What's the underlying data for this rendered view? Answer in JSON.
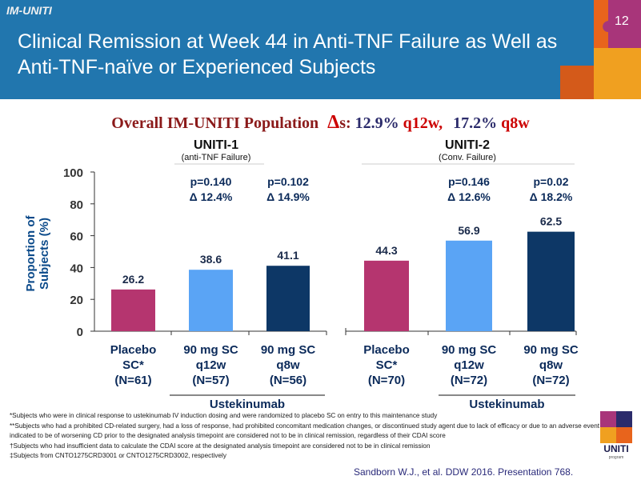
{
  "header": {
    "brand": "IM-UNITI",
    "title": "Clinical Remission at Week 44 in Anti-TNF Failure as Well as Anti-TNF-naïve or Experienced Subjects",
    "slide_number": "12"
  },
  "subtitle": {
    "lead": "Overall IM-UNITI Population",
    "delta_symbol": "Δ",
    "suffix": "s: ",
    "q12w_pct": "12.9%",
    "q12w_label": "q12w,",
    "q8w_pct": "17.2%",
    "q8w_label": "q8w"
  },
  "chart_data": {
    "type": "bar",
    "ylabel": "Proportion of Subjects (%)",
    "ylim": [
      0,
      100
    ],
    "yticks": [
      "0",
      "20",
      "40",
      "60",
      "80",
      "100"
    ],
    "grid": false,
    "groups": [
      {
        "title": "UNITI-1",
        "subtitle": "(anti-TNF Failure)",
        "brace_label": "Ustekinumab",
        "bars": [
          {
            "label": [
              "Placebo",
              "SC*",
              "(N=61)"
            ],
            "value": 26.2,
            "value_label": "26.2",
            "color": "#b5356f",
            "p": "",
            "delta": ""
          },
          {
            "label": [
              "90 mg SC",
              "q12w",
              "(N=57)"
            ],
            "value": 38.6,
            "value_label": "38.6",
            "color": "#5aa4f5",
            "p": "p=0.140",
            "delta": "Δ 12.4%"
          },
          {
            "label": [
              "90 mg SC",
              "q8w",
              "(N=56)"
            ],
            "value": 41.1,
            "value_label": "41.1",
            "color": "#0d3766",
            "p": "p=0.102",
            "delta": "Δ 14.9%"
          }
        ]
      },
      {
        "title": "UNITI-2",
        "subtitle": "(Conv. Failure)",
        "brace_label": "Ustekinumab",
        "bars": [
          {
            "label": [
              "Placebo",
              "SC*",
              "(N=70)"
            ],
            "value": 44.3,
            "value_label": "44.3",
            "color": "#b5356f",
            "p": "",
            "delta": ""
          },
          {
            "label": [
              "90 mg SC",
              "q12w",
              "(N=72)"
            ],
            "value": 56.9,
            "value_label": "56.9",
            "color": "#5aa4f5",
            "p": "p=0.146",
            "delta": "Δ 12.6%"
          },
          {
            "label": [
              "90 mg SC",
              "q8w",
              "(N=72)"
            ],
            "value": 62.5,
            "value_label": "62.5",
            "color": "#0d3766",
            "p": "p=0.02",
            "delta": "Δ 18.2%"
          }
        ]
      }
    ]
  },
  "footnotes": [
    "*Subjects who were in clinical response to ustekinumab IV induction dosing and were randomized to placebo SC on entry to this maintenance study",
    "**Subjects who had a prohibited CD-related surgery, had a loss of response, had prohibited concomitant medication changes, or discontinued study agent due to lack of efficacy or due to an adverse event indicated to be of worsening CD prior to the designated analysis timepoint are considered not to be in clinical remission, regardless of their CDAI score",
    "†Subjects who had insufficient data to calculate the CDAI score at the designated analysis timepoint are considered not to be in clinical remission",
    "‡Subjects from CNTO1275CRD3001 or CNTO1275CRD3002, respectively"
  ],
  "citation": "Sandborn W.J., et al. DDW 2016. Presentation 768.",
  "logo": {
    "text": "UNITI",
    "subtext": "program"
  },
  "colors": {
    "header_bg": "#2176ae",
    "placebo": "#b5356f",
    "q12w": "#5aa4f5",
    "q8w": "#0d3766",
    "subtitle_red": "#8b1a1a"
  }
}
